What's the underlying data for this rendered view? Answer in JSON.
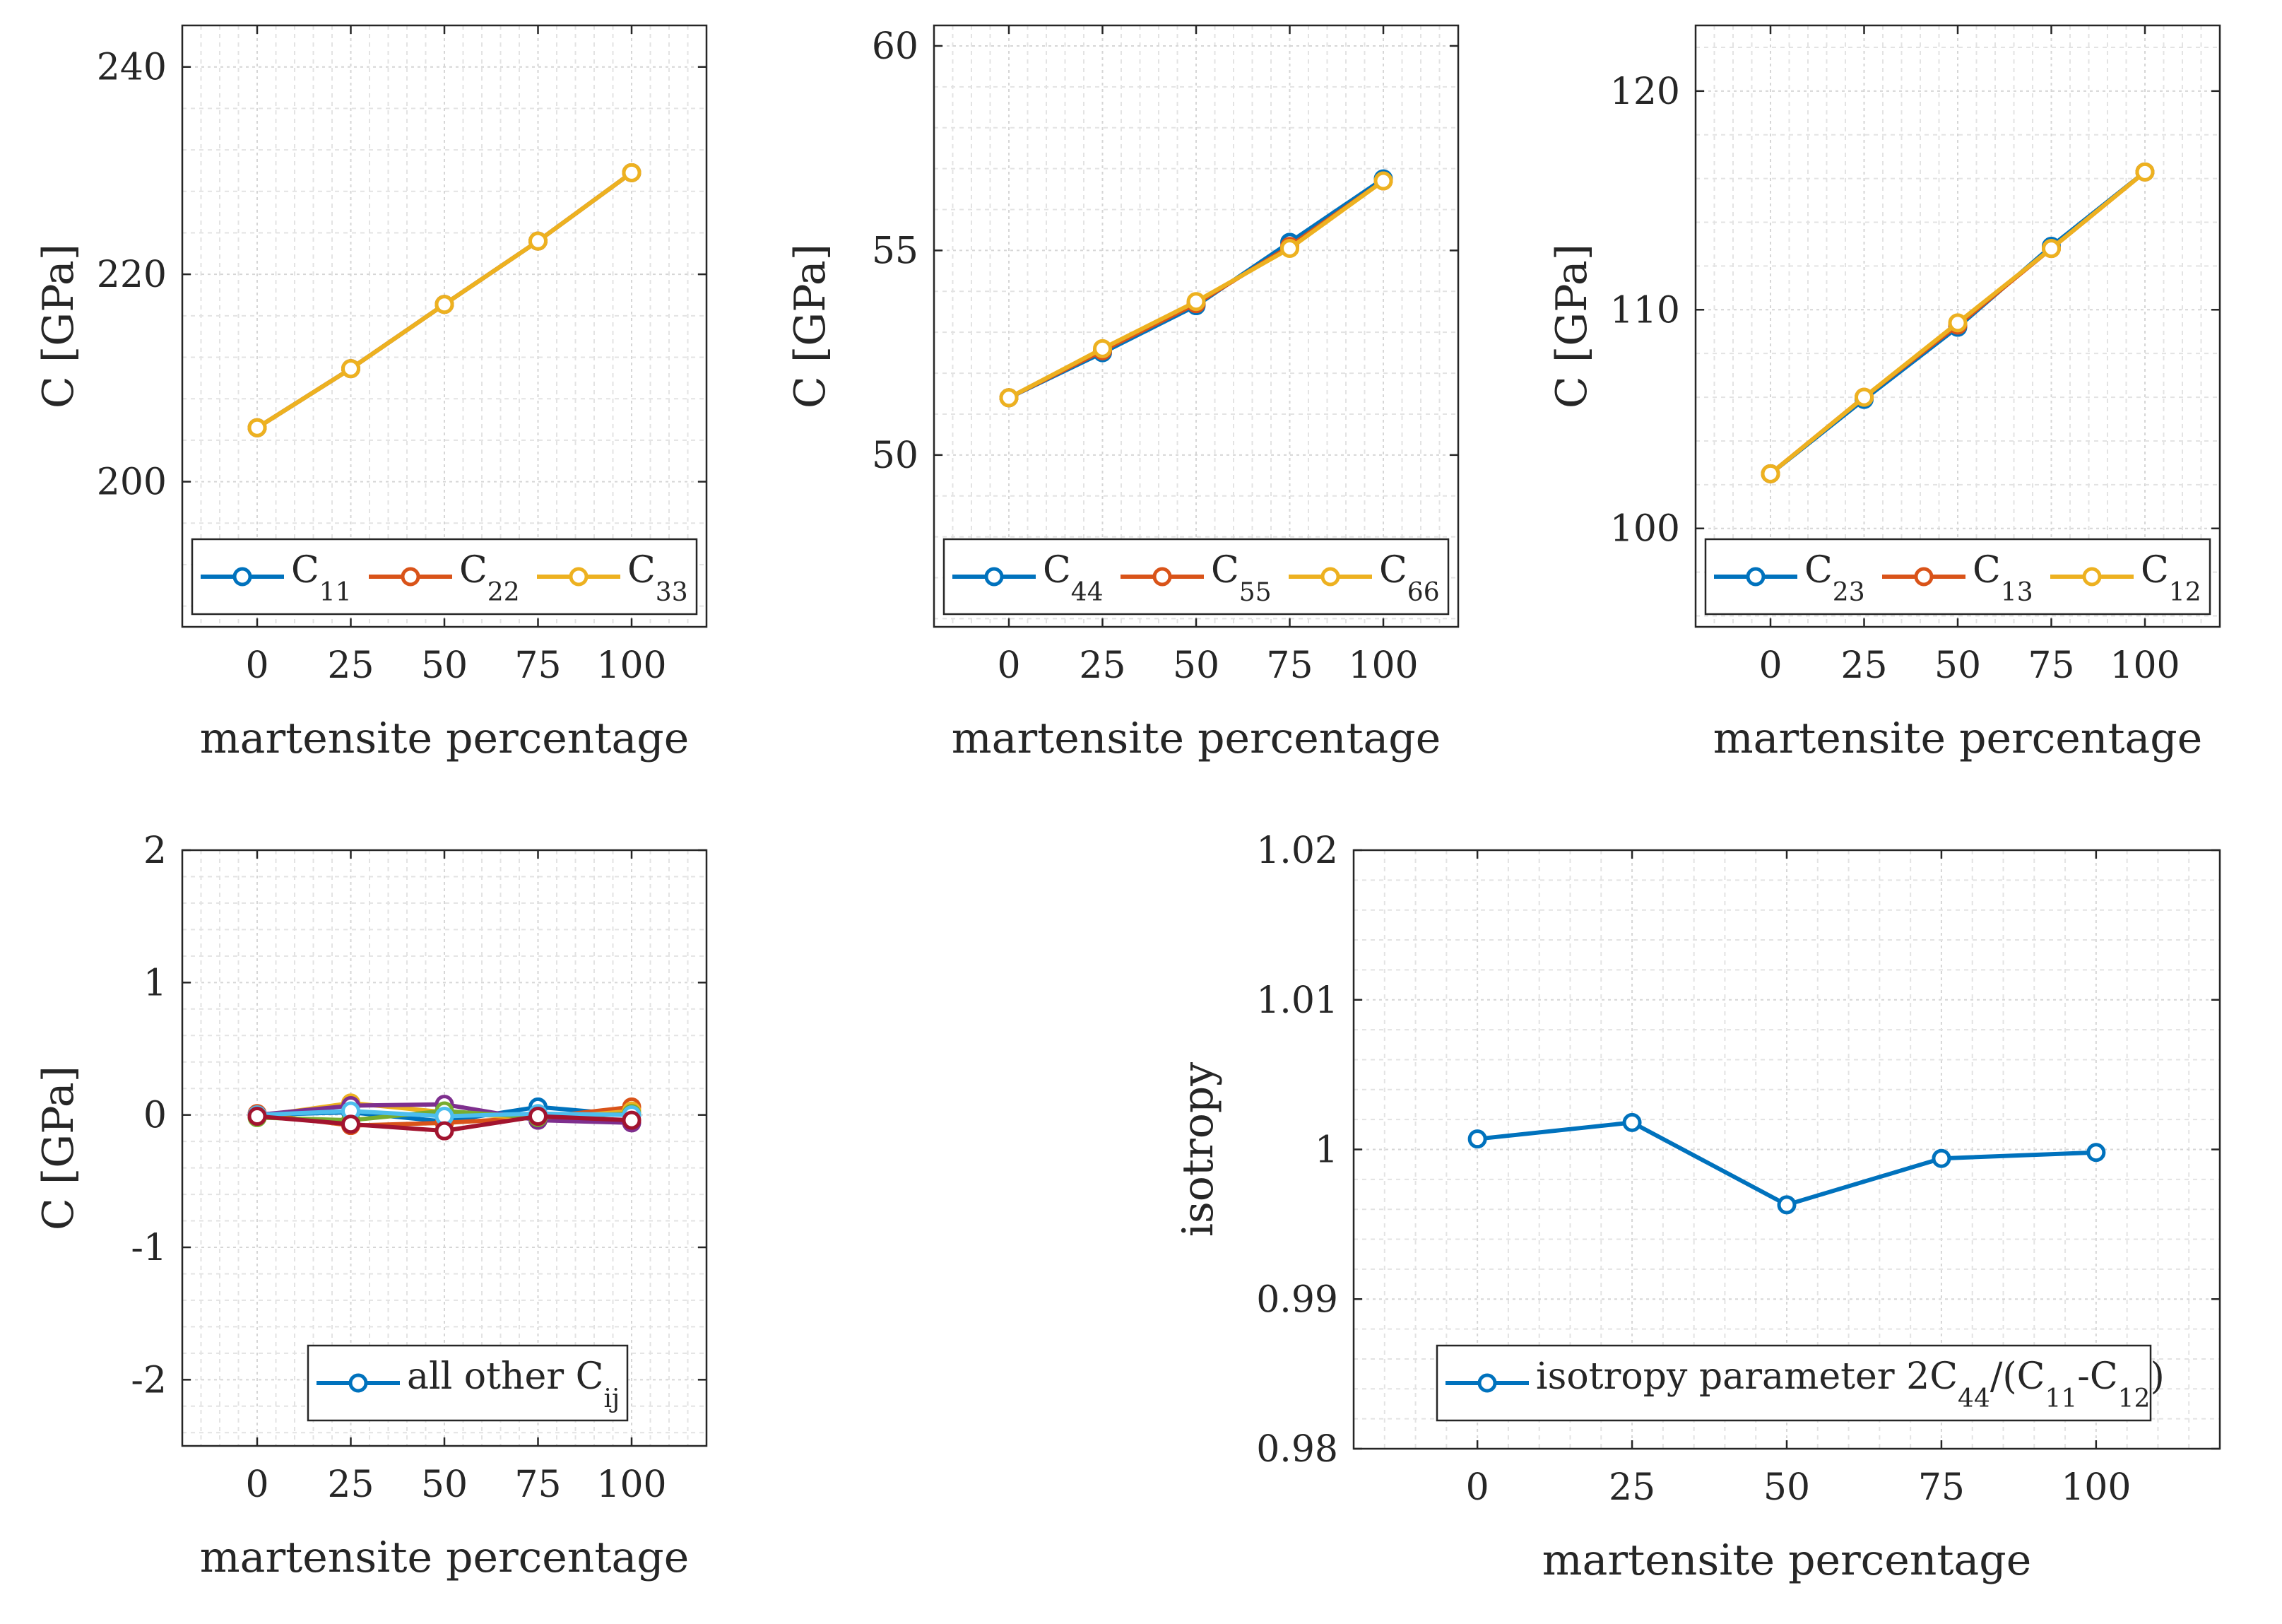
{
  "figure": {
    "colors": {
      "blue": "#0072BD",
      "red": "#D95319",
      "yellow": "#EDB120",
      "purple": "#7E2F8E",
      "green": "#77AC30",
      "cyan": "#4DBEEE",
      "maroon": "#A2142F"
    }
  },
  "chart_data": [
    {
      "id": "normal",
      "type": "line",
      "xlabel": "martensite percentage",
      "ylabel": "C [GPa]",
      "x": [
        0,
        25,
        50,
        75,
        100
      ],
      "xlim": [
        -20,
        120
      ],
      "ylim": [
        186,
        244
      ],
      "yticks": [
        200,
        220,
        240
      ],
      "xticks": [
        0,
        25,
        50,
        75,
        100
      ],
      "series": [
        {
          "name": "C",
          "sub": "11",
          "color": "#0072BD",
          "values": [
            205.2,
            210.9,
            217.1,
            223.2,
            229.8
          ]
        },
        {
          "name": "C",
          "sub": "22",
          "color": "#D95319",
          "values": [
            205.2,
            210.9,
            217.1,
            223.2,
            229.8
          ]
        },
        {
          "name": "C",
          "sub": "33",
          "color": "#EDB120",
          "values": [
            205.2,
            210.9,
            217.1,
            223.2,
            229.8
          ]
        }
      ],
      "legend": "bottom"
    },
    {
      "id": "shear",
      "type": "line",
      "xlabel": "martensite percentage",
      "ylabel": "C [GPa]",
      "x": [
        0,
        25,
        50,
        75,
        100
      ],
      "xlim": [
        -20,
        120
      ],
      "ylim": [
        45.8,
        60.5
      ],
      "yticks": [
        50,
        55,
        60
      ],
      "xticks": [
        0,
        25,
        50,
        75,
        100
      ],
      "series": [
        {
          "name": "C",
          "sub": "44",
          "color": "#0072BD",
          "values": [
            51.4,
            52.5,
            53.65,
            55.2,
            56.75
          ]
        },
        {
          "name": "C",
          "sub": "55",
          "color": "#D95319",
          "values": [
            51.4,
            52.55,
            53.7,
            55.1,
            56.7
          ]
        },
        {
          "name": "C",
          "sub": "66",
          "color": "#EDB120",
          "values": [
            51.4,
            52.6,
            53.75,
            55.05,
            56.7
          ]
        }
      ],
      "legend": "bottom"
    },
    {
      "id": "offdiag",
      "type": "line",
      "xlabel": "martensite percentage",
      "ylabel": "C [GPa]",
      "x": [
        0,
        25,
        50,
        75,
        100
      ],
      "xlim": [
        -20,
        120
      ],
      "ylim": [
        95.5,
        123
      ],
      "yticks": [
        100,
        110,
        120
      ],
      "xticks": [
        0,
        25,
        50,
        75,
        100
      ],
      "series": [
        {
          "name": "C",
          "sub": "23",
          "color": "#0072BD",
          "values": [
            102.5,
            105.9,
            109.2,
            112.9,
            116.3
          ]
        },
        {
          "name": "C",
          "sub": "13",
          "color": "#D95319",
          "values": [
            102.5,
            106.0,
            109.3,
            112.8,
            116.3
          ]
        },
        {
          "name": "C",
          "sub": "12",
          "color": "#EDB120",
          "values": [
            102.5,
            106.0,
            109.4,
            112.8,
            116.3
          ]
        }
      ],
      "legend": "bottom"
    },
    {
      "id": "others",
      "type": "line",
      "xlabel": "martensite percentage",
      "ylabel": "C [GPa]",
      "x": [
        0,
        25,
        50,
        75,
        100
      ],
      "xlim": [
        -20,
        120
      ],
      "ylim": [
        -2.5,
        2
      ],
      "yticks": [
        -2,
        -1,
        0,
        1,
        2
      ],
      "xticks": [
        0,
        25,
        50,
        75,
        100
      ],
      "series": [
        {
          "name": "all other C",
          "sub": "ij",
          "color": "#0072BD",
          "values": [
            0.0,
            0.02,
            -0.05,
            0.06,
            0.0
          ]
        },
        {
          "name": "",
          "sub": "",
          "color": "#D95319",
          "values": [
            0.01,
            -0.08,
            -0.06,
            -0.02,
            0.06
          ]
        },
        {
          "name": "",
          "sub": "",
          "color": "#EDB120",
          "values": [
            -0.01,
            0.09,
            0.02,
            -0.03,
            0.03
          ]
        },
        {
          "name": "",
          "sub": "",
          "color": "#7E2F8E",
          "values": [
            0.0,
            0.07,
            0.08,
            -0.04,
            -0.06
          ]
        },
        {
          "name": "",
          "sub": "",
          "color": "#77AC30",
          "values": [
            -0.02,
            -0.04,
            0.03,
            -0.02,
            0.01
          ]
        },
        {
          "name": "",
          "sub": "",
          "color": "#4DBEEE",
          "values": [
            0.0,
            0.03,
            -0.01,
            0.01,
            0.0
          ]
        },
        {
          "name": "",
          "sub": "",
          "color": "#A2142F",
          "values": [
            -0.01,
            -0.07,
            -0.12,
            -0.01,
            -0.04
          ]
        }
      ],
      "legend": "bottom"
    },
    {
      "id": "isotropy",
      "type": "line",
      "xlabel": "martensite percentage",
      "ylabel": "isotropy",
      "x": [
        0,
        25,
        50,
        75,
        100
      ],
      "xlim": [
        -20,
        120
      ],
      "ylim": [
        0.98,
        1.02
      ],
      "yticks": [
        0.98,
        0.99,
        1,
        1.01,
        1.02
      ],
      "xticks": [
        0,
        25,
        50,
        75,
        100
      ],
      "series": [
        {
          "name": "isotropy parameter 2C",
          "sub": "44",
          "name2": "/(C",
          "sub2": "11",
          "name3": "-C",
          "sub3": "12",
          "name4": ")",
          "color": "#0072BD",
          "values": [
            1.0007,
            1.0018,
            0.9963,
            0.9994,
            0.9998
          ]
        }
      ],
      "legend": "bottom"
    }
  ]
}
